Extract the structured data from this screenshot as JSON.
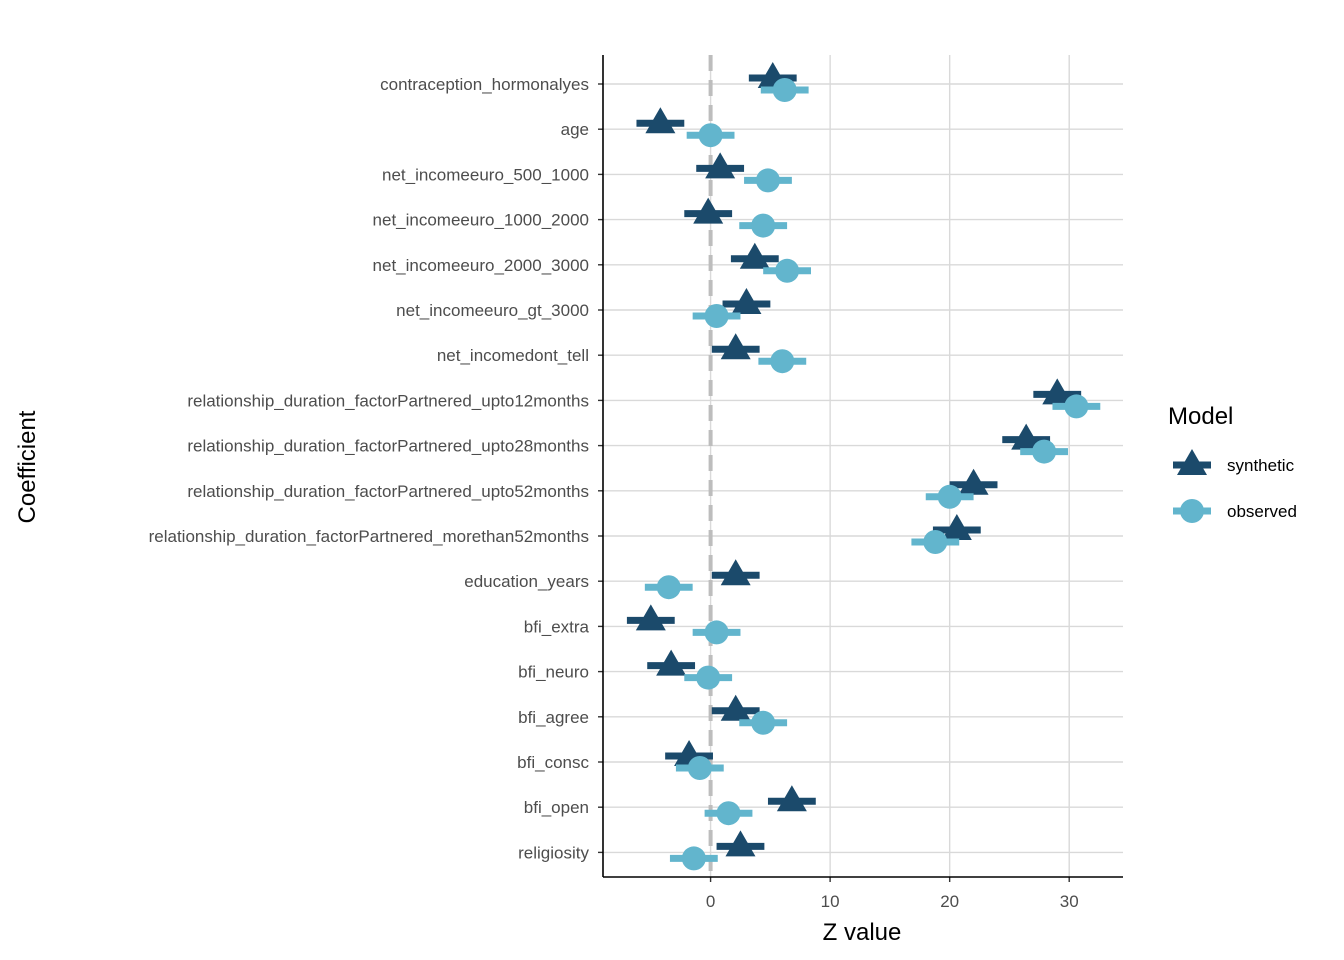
{
  "chart_data": {
    "type": "scatter",
    "xlabel": "Z value",
    "ylabel": "Coefficient",
    "xlim": [
      -9,
      34.5
    ],
    "x_ticks": [
      0,
      10,
      20,
      30
    ],
    "x_tick_labels": [
      "0",
      "10",
      "20",
      "30"
    ],
    "grid": true,
    "reference_line": 0,
    "categories": [
      "contraception_hormonalyes",
      "age",
      "net_incomeeuro_500_1000",
      "net_incomeeuro_1000_2000",
      "net_incomeeuro_2000_3000",
      "net_incomeeuro_gt_3000",
      "net_incomedont_tell",
      "relationship_duration_factorPartnered_upto12months",
      "relationship_duration_factorPartnered_upto28months",
      "relationship_duration_factorPartnered_upto52months",
      "relationship_duration_factorPartnered_morethan52months",
      "education_years",
      "bfi_extra",
      "bfi_neuro",
      "bfi_agree",
      "bfi_consc",
      "bfi_open",
      "religiosity"
    ],
    "series": [
      {
        "name": "synthetic",
        "shape": "triangle",
        "color": "#1b4a6b",
        "values": [
          5.2,
          -4.2,
          0.8,
          -0.2,
          3.7,
          3.0,
          2.1,
          29.0,
          26.4,
          22.0,
          20.6,
          2.1,
          -5.0,
          -3.3,
          2.1,
          -1.8,
          6.8,
          2.5
        ],
        "ci_low": [
          3.2,
          -6.2,
          -1.2,
          -2.2,
          1.7,
          1.0,
          0.1,
          27.0,
          24.4,
          20.0,
          18.6,
          0.1,
          -7.0,
          -5.3,
          0.1,
          -3.8,
          4.8,
          0.5
        ],
        "ci_high": [
          7.2,
          -2.2,
          2.8,
          1.8,
          5.7,
          5.0,
          4.1,
          31.0,
          28.4,
          24.0,
          22.6,
          4.1,
          -3.0,
          -1.3,
          4.1,
          0.2,
          8.8,
          4.5
        ]
      },
      {
        "name": "observed",
        "shape": "circle",
        "color": "#62b5cd",
        "values": [
          6.2,
          0.0,
          4.8,
          4.4,
          6.4,
          0.5,
          6.0,
          30.6,
          27.9,
          20.0,
          18.8,
          -3.5,
          0.5,
          -0.2,
          4.4,
          -0.9,
          1.5,
          -1.4
        ],
        "ci_low": [
          4.2,
          -2.0,
          2.8,
          2.4,
          4.4,
          -1.5,
          4.0,
          28.6,
          25.9,
          18.0,
          16.8,
          -5.5,
          -1.5,
          -2.2,
          2.4,
          -2.9,
          -0.5,
          -3.4
        ],
        "ci_high": [
          8.2,
          2.0,
          6.8,
          6.4,
          8.4,
          2.5,
          8.0,
          32.6,
          29.9,
          22.0,
          20.8,
          -1.5,
          2.5,
          1.8,
          6.4,
          1.1,
          3.5,
          0.6
        ]
      }
    ],
    "legend": {
      "title": "Model",
      "placement": "right",
      "items": [
        "synthetic",
        "observed"
      ]
    }
  }
}
